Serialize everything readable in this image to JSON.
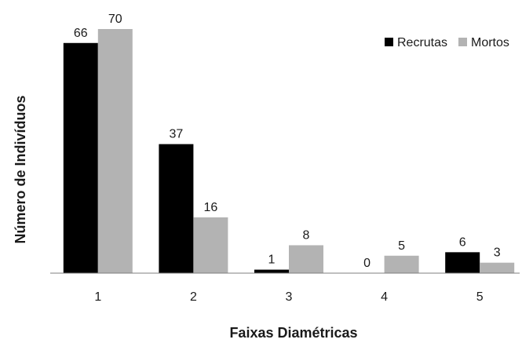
{
  "chart_data": {
    "type": "bar",
    "categories": [
      "1",
      "2",
      "3",
      "4",
      "5"
    ],
    "series": [
      {
        "name": "Recrutas",
        "values": [
          66,
          37,
          1,
          0,
          6
        ],
        "color": "#000000"
      },
      {
        "name": "Mortos",
        "values": [
          70,
          16,
          8,
          5,
          3
        ],
        "color": "#b3b3b3"
      }
    ],
    "title": "",
    "xlabel": "Faixas Diamétricas",
    "ylabel": "Número de Indivíduos",
    "ylim": [
      0,
      70
    ],
    "grid": false,
    "legend_position": "top-right",
    "data_labels": true
  }
}
